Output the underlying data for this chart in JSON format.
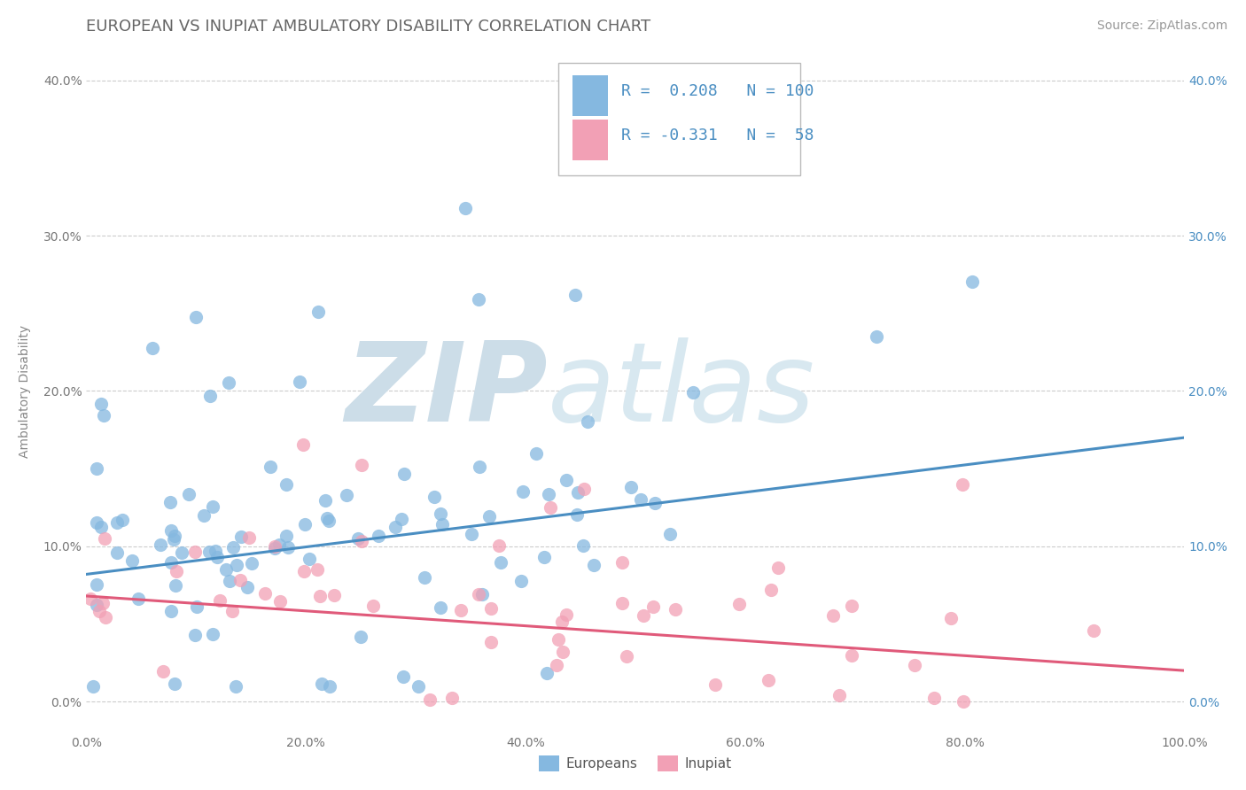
{
  "title": "EUROPEAN VS INUPIAT AMBULATORY DISABILITY CORRELATION CHART",
  "source": "Source: ZipAtlas.com",
  "ylabel": "Ambulatory Disability",
  "xlim": [
    0.0,
    1.0
  ],
  "ylim": [
    -0.02,
    0.42
  ],
  "xtick_labels": [
    "0.0%",
    "20.0%",
    "40.0%",
    "60.0%",
    "80.0%",
    "100.0%"
  ],
  "ytick_labels": [
    "0.0%",
    "10.0%",
    "20.0%",
    "30.0%",
    "40.0%"
  ],
  "european_R": 0.208,
  "european_N": 100,
  "inupiat_R": -0.331,
  "inupiat_N": 58,
  "european_color": "#85b8e0",
  "inupiat_color": "#f2a0b5",
  "european_line_color": "#4a8ec2",
  "inupiat_line_color": "#e05a7a",
  "background_color": "#ffffff",
  "grid_color": "#cccccc",
  "title_color": "#666666",
  "watermark_color": "#d0e4f0",
  "title_fontsize": 13,
  "axis_label_fontsize": 10,
  "tick_fontsize": 10,
  "legend_fontsize": 13,
  "source_fontsize": 10,
  "eu_line_start_y": 0.082,
  "eu_line_end_y": 0.17,
  "in_line_start_y": 0.068,
  "in_line_end_y": 0.02
}
